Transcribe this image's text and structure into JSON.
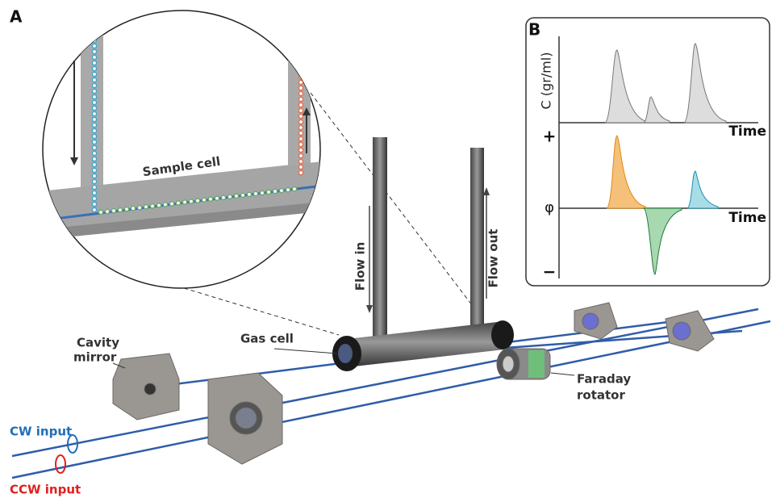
{
  "panel_a": {
    "label": "A",
    "zoom_label": "Sample cell",
    "flow_in": "Flow in",
    "flow_out": "Flow out",
    "gas_cell": "Gas cell",
    "cavity_mirror": [
      "Cavity",
      "mirror"
    ],
    "faraday_rotator": [
      "Faraday",
      "rotator"
    ],
    "cw_input": "CW input",
    "ccw_input": "CCW input"
  },
  "panel_b": {
    "label": "B",
    "top_axis_label": "C (gr/ml)",
    "top_time_label": "Time",
    "bottom_time_label": "Time",
    "plus_label": "+",
    "phi_label": "φ",
    "minus_label": "−"
  }
}
